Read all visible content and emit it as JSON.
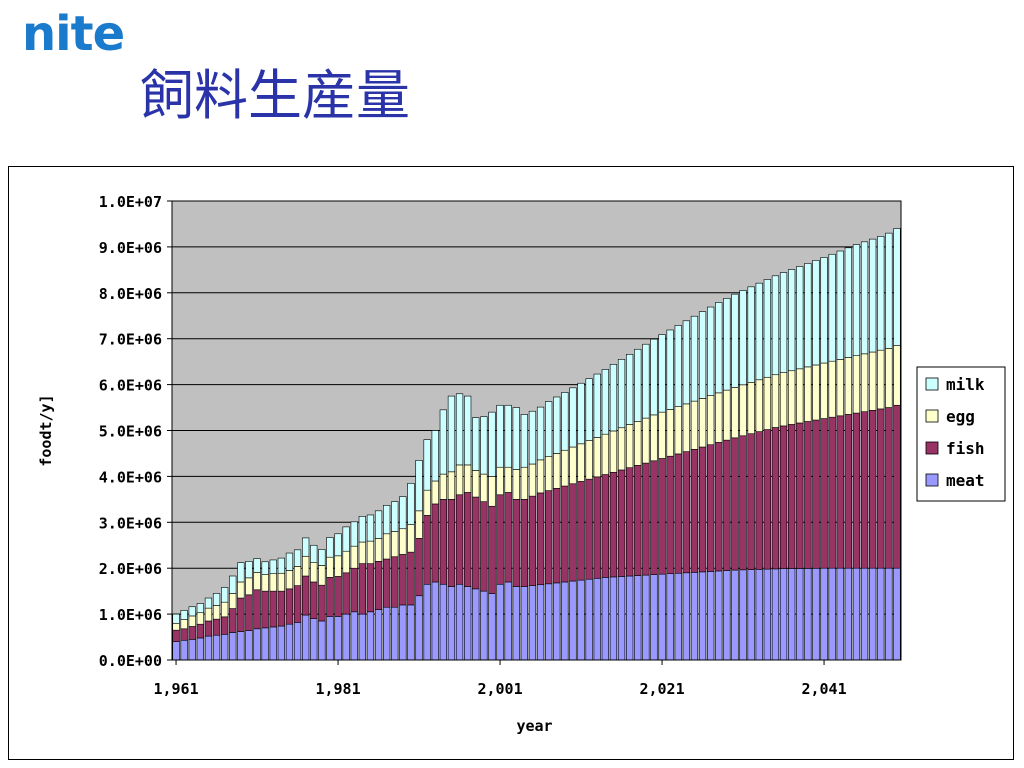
{
  "logo_text": "nite",
  "slide_title": "飼料生産量",
  "chart_data": {
    "type": "bar",
    "stacked": true,
    "xlabel": "year",
    "ylabel": "foodt/y]",
    "ylim": [
      0,
      10000000
    ],
    "yticks": [
      "0.0E+00",
      "1.0E+06",
      "2.0E+06",
      "3.0E+06",
      "4.0E+06",
      "5.0E+06",
      "6.0E+06",
      "7.0E+06",
      "8.0E+06",
      "9.0E+06",
      "1.0E+07"
    ],
    "xtick_labels": [
      {
        "year": 1961,
        "label": "1,961"
      },
      {
        "year": 1981,
        "label": "1,981"
      },
      {
        "year": 2001,
        "label": "2,001"
      },
      {
        "year": 2021,
        "label": "2,021"
      },
      {
        "year": 2041,
        "label": "2,041"
      }
    ],
    "grid": true,
    "plot_background": "#c0c0c0",
    "legend_position": "right",
    "categories": [
      1961,
      1962,
      1963,
      1964,
      1965,
      1966,
      1967,
      1968,
      1969,
      1970,
      1971,
      1972,
      1973,
      1974,
      1975,
      1976,
      1977,
      1978,
      1979,
      1980,
      1981,
      1982,
      1983,
      1984,
      1985,
      1986,
      1987,
      1988,
      1989,
      1990,
      1991,
      1992,
      1993,
      1994,
      1995,
      1996,
      1997,
      1998,
      1999,
      2000,
      2001,
      2002,
      2003,
      2004,
      2005,
      2006,
      2007,
      2008,
      2009,
      2010,
      2011,
      2012,
      2013,
      2014,
      2015,
      2016,
      2017,
      2018,
      2019,
      2020,
      2021,
      2022,
      2023,
      2024,
      2025,
      2026,
      2027,
      2028,
      2029,
      2030,
      2031,
      2032,
      2033,
      2034,
      2035,
      2036,
      2037,
      2038,
      2039,
      2040,
      2041,
      2042,
      2043,
      2044,
      2045,
      2046,
      2047,
      2048,
      2049,
      2050
    ],
    "series": [
      {
        "name": "meat",
        "color": "#9999ff",
        "values": [
          400000,
          430000,
          450000,
          480000,
          520000,
          540000,
          560000,
          600000,
          620000,
          640000,
          680000,
          700000,
          720000,
          740000,
          780000,
          820000,
          980000,
          900000,
          850000,
          950000,
          950000,
          1000000,
          1050000,
          1000000,
          1050000,
          1100000,
          1150000,
          1150000,
          1200000,
          1200000,
          1400000,
          1650000,
          1700000,
          1650000,
          1600000,
          1650000,
          1600000,
          1550000,
          1500000,
          1450000,
          1650000,
          1700000,
          1600000,
          1600000,
          1620000,
          1640000,
          1660000,
          1680000,
          1700000,
          1720000,
          1740000,
          1760000,
          1780000,
          1800000,
          1810000,
          1820000,
          1830000,
          1840000,
          1850000,
          1860000,
          1870000,
          1880000,
          1890000,
          1900000,
          1910000,
          1920000,
          1930000,
          1940000,
          1950000,
          1960000,
          1965000,
          1970000,
          1975000,
          1980000,
          1985000,
          1990000,
          1992000,
          1994000,
          1996000,
          1998000,
          2000000,
          2000000,
          2000000,
          2000000,
          2000000,
          2000000,
          2000000,
          2000000,
          2000000,
          2000000
        ]
      },
      {
        "name": "fish",
        "color": "#993366",
        "values": [
          250000,
          250000,
          280000,
          300000,
          330000,
          350000,
          380000,
          520000,
          730000,
          780000,
          850000,
          800000,
          780000,
          760000,
          770000,
          800000,
          850000,
          800000,
          780000,
          850000,
          870000,
          900000,
          950000,
          1100000,
          1050000,
          1050000,
          1050000,
          1100000,
          1100000,
          1150000,
          1250000,
          1500000,
          1700000,
          1850000,
          1900000,
          1950000,
          2050000,
          2000000,
          1950000,
          1900000,
          1950000,
          1950000,
          1900000,
          1900000,
          1950000,
          2000000,
          2030000,
          2060000,
          2090000,
          2120000,
          2150000,
          2180000,
          2210000,
          2240000,
          2280000,
          2320000,
          2360000,
          2400000,
          2440000,
          2480000,
          2520000,
          2560000,
          2600000,
          2640000,
          2680000,
          2720000,
          2760000,
          2800000,
          2840000,
          2880000,
          2920000,
          2960000,
          3000000,
          3040000,
          3080000,
          3110000,
          3140000,
          3170000,
          3200000,
          3230000,
          3260000,
          3290000,
          3320000,
          3350000,
          3380000,
          3410000,
          3440000,
          3470000,
          3500000,
          3550000
        ]
      },
      {
        "name": "egg",
        "color": "#ffffcc",
        "values": [
          150000,
          200000,
          230000,
          250000,
          280000,
          300000,
          320000,
          330000,
          350000,
          370000,
          380000,
          360000,
          380000,
          390000,
          400000,
          420000,
          430000,
          420000,
          430000,
          440000,
          450000,
          470000,
          480000,
          470000,
          490000,
          500000,
          550000,
          550000,
          560000,
          600000,
          600000,
          550000,
          500000,
          550000,
          600000,
          650000,
          600000,
          580000,
          600000,
          650000,
          600000,
          550000,
          650000,
          700000,
          700000,
          720000,
          740000,
          760000,
          780000,
          800000,
          820000,
          840000,
          860000,
          880000,
          900000,
          920000,
          940000,
          960000,
          980000,
          1000000,
          1010000,
          1020000,
          1030000,
          1040000,
          1050000,
          1060000,
          1070000,
          1080000,
          1090000,
          1100000,
          1110000,
          1120000,
          1130000,
          1140000,
          1150000,
          1160000,
          1170000,
          1180000,
          1190000,
          1200000,
          1210000,
          1220000,
          1230000,
          1240000,
          1250000,
          1260000,
          1270000,
          1280000,
          1290000,
          1300000
        ]
      },
      {
        "name": "milk",
        "color": "#ccffff",
        "values": [
          200000,
          200000,
          200000,
          200000,
          220000,
          260000,
          320000,
          380000,
          420000,
          360000,
          300000,
          280000,
          300000,
          330000,
          380000,
          360000,
          400000,
          380000,
          350000,
          430000,
          480000,
          530000,
          530000,
          560000,
          570000,
          600000,
          620000,
          650000,
          700000,
          900000,
          1100000,
          1100000,
          1100000,
          1400000,
          1650000,
          1550000,
          1500000,
          1150000,
          1250000,
          1400000,
          1350000,
          1350000,
          1350000,
          1150000,
          1150000,
          1150000,
          1200000,
          1230000,
          1260000,
          1290000,
          1320000,
          1350000,
          1380000,
          1410000,
          1450000,
          1490000,
          1530000,
          1570000,
          1610000,
          1650000,
          1690000,
          1730000,
          1770000,
          1810000,
          1850000,
          1890000,
          1930000,
          1970000,
          2000000,
          2030000,
          2055000,
          2080000,
          2105000,
          2130000,
          2155000,
          2180000,
          2205000,
          2230000,
          2255000,
          2280000,
          2300000,
          2330000,
          2360000,
          2390000,
          2420000,
          2440000,
          2460000,
          2480000,
          2510000,
          2550000
        ]
      }
    ]
  }
}
